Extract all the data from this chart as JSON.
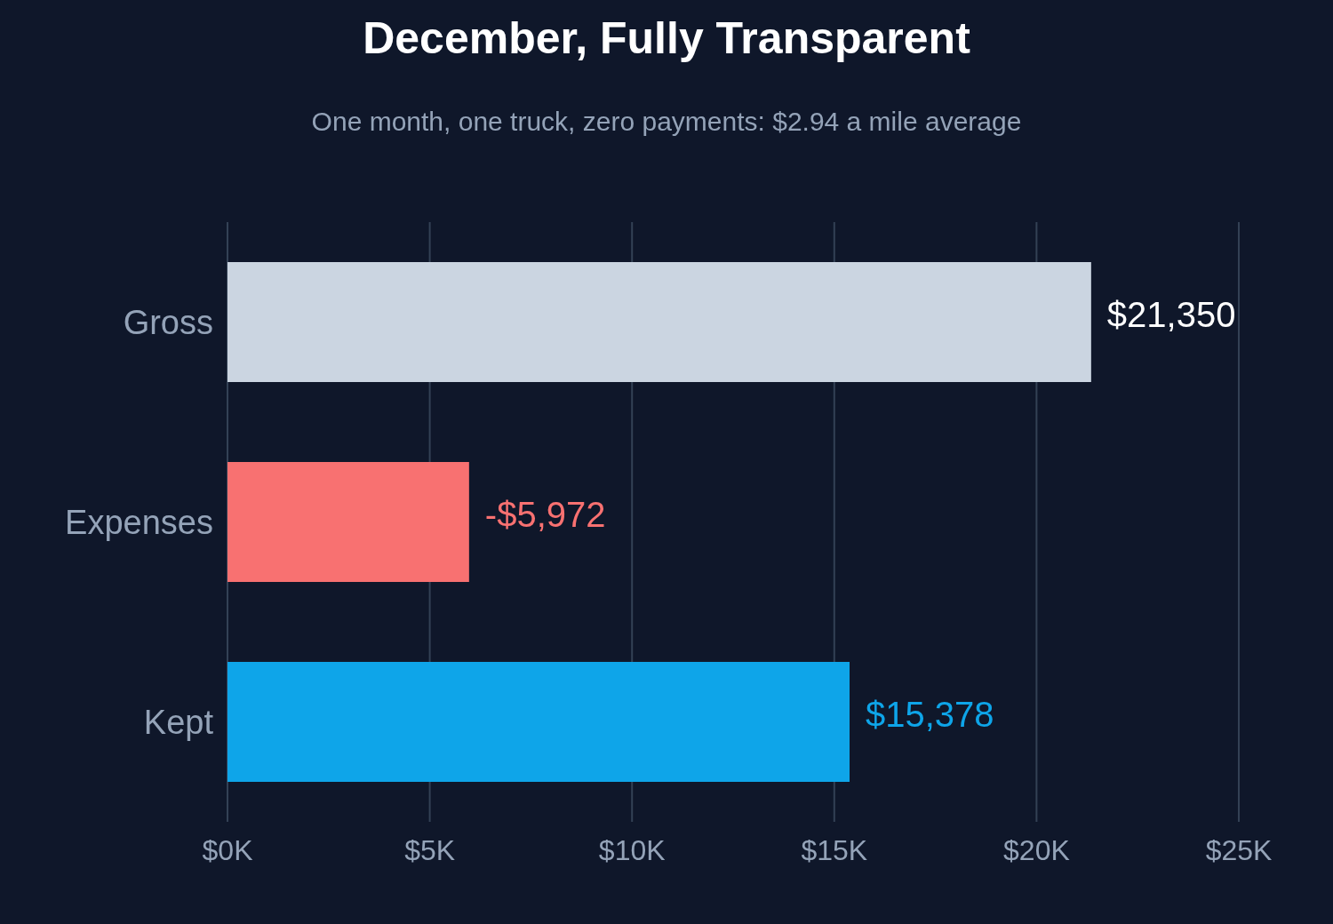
{
  "chart_data": {
    "type": "bar",
    "orientation": "horizontal",
    "title": "December, Fully Transparent",
    "subtitle": "One month, one truck, zero payments: $2.94 a mile average",
    "categories": [
      "Gross",
      "Expenses",
      "Kept"
    ],
    "values": [
      21350,
      -5972,
      15378
    ],
    "base": [
      0,
      5972,
      0
    ],
    "colors": [
      "#cbd5e1",
      "#f87171",
      "#0ea5e9"
    ],
    "value_labels": [
      "$21,350",
      "-$5,972",
      "$15,378"
    ],
    "xlim": [
      0,
      25000
    ],
    "xticks": [
      {
        "value": 0,
        "label": "$0K"
      },
      {
        "value": 5000,
        "label": "$5K"
      },
      {
        "value": 10000,
        "label": "$10K"
      },
      {
        "value": 15000,
        "label": "$15K"
      },
      {
        "value": 20000,
        "label": "$20K"
      },
      {
        "value": 25000,
        "label": "$25K"
      }
    ],
    "grid": "x"
  }
}
